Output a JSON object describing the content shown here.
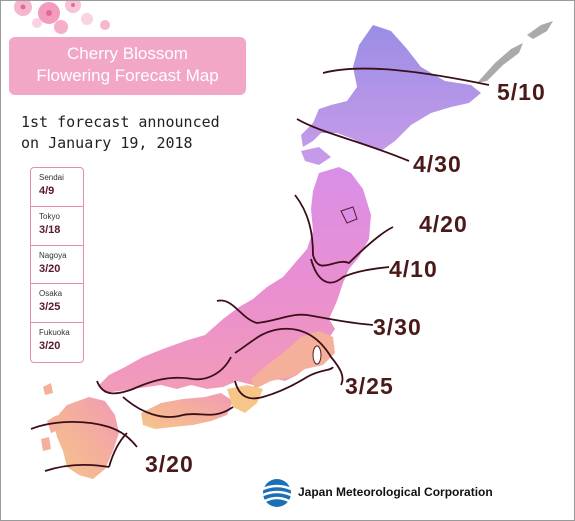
{
  "title_line1": "Cherry Blossom",
  "title_line2": "Flowering Forecast Map",
  "announcement_line1": "1st forecast announced",
  "announcement_line2": "on January 19, 2018",
  "cities": [
    {
      "name": "Sendai",
      "date": "4/9"
    },
    {
      "name": "Tokyo",
      "date": "3/18"
    },
    {
      "name": "Nagoya",
      "date": "3/20"
    },
    {
      "name": "Osaka",
      "date": "3/25"
    },
    {
      "name": "Fukuoka",
      "date": "3/20"
    }
  ],
  "isolines": [
    "5/10",
    "4/30",
    "4/20",
    "4/10",
    "3/30",
    "3/25",
    "3/20"
  ],
  "agency": "Japan Meteorological Corporation",
  "colors": {
    "title_box": "#f2a7c7",
    "hokkaido_north": "#9a8ee6",
    "hokkaido_south": "#c59ae8",
    "tohoku": "#dd8ee6",
    "central": "#e98fd2",
    "kanto_kinki": "#f09ac0",
    "west": "#f4b09a",
    "south": "#f6c58a"
  }
}
